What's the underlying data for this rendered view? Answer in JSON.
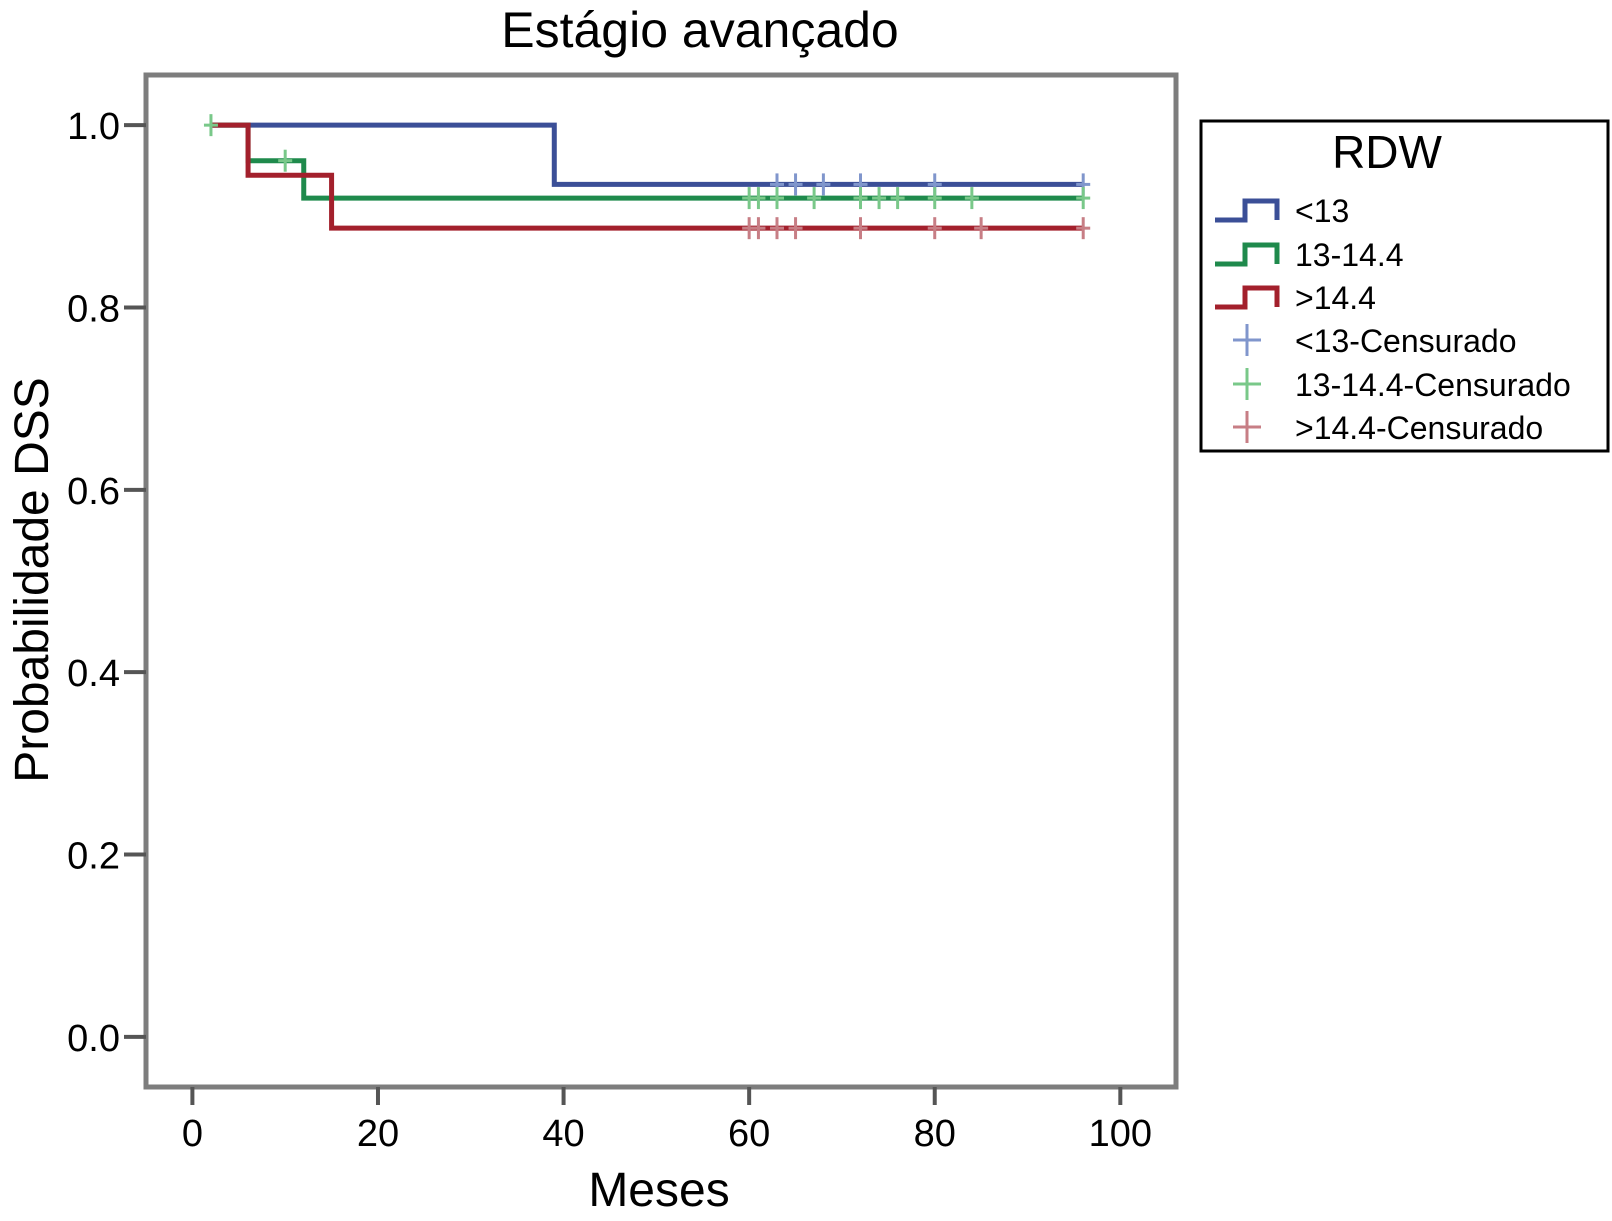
{
  "chart_data": {
    "type": "line",
    "title": "Estágio avançado",
    "xlabel": "Meses",
    "ylabel": "Probabilidade DSS",
    "xlim": [
      -5,
      106
    ],
    "ylim": [
      -0.055,
      1.055
    ],
    "xticks": [
      0,
      20,
      40,
      60,
      80,
      100
    ],
    "yticks": [
      0.0,
      0.2,
      0.4,
      0.6,
      0.8,
      1.0
    ],
    "xtick_labels": [
      "0",
      "20",
      "40",
      "60",
      "80",
      "100"
    ],
    "ytick_labels": [
      "0.0",
      "0.2",
      "0.4",
      "0.6",
      "0.8",
      "1.0"
    ],
    "grid": false,
    "legend": {
      "title": "RDW",
      "placement": "right-top",
      "entries": [
        "<13",
        "13-14.4",
        ">14.4",
        "<13-Censurado",
        "13-14.4-Censurado",
        ">14.4-Censurado"
      ]
    },
    "series": [
      {
        "name": "<13",
        "color": "#3b4f97",
        "censor_color": "#8096cc",
        "step_x": [
          2,
          39,
          96
        ],
        "step_y": [
          1.0,
          0.935,
          0.935
        ],
        "censored": [
          {
            "x": 63,
            "y": 0.935
          },
          {
            "x": 65,
            "y": 0.935
          },
          {
            "x": 68,
            "y": 0.935
          },
          {
            "x": 72,
            "y": 0.935
          },
          {
            "x": 80,
            "y": 0.935
          },
          {
            "x": 96,
            "y": 0.935
          }
        ]
      },
      {
        "name": "13-14.4",
        "color": "#1f8a4c",
        "censor_color": "#79c889",
        "step_x": [
          2,
          6,
          12,
          96
        ],
        "step_y": [
          1.0,
          0.961,
          0.92,
          0.92
        ],
        "censored": [
          {
            "x": 2,
            "y": 1.0
          },
          {
            "x": 10,
            "y": 0.961
          },
          {
            "x": 60,
            "y": 0.92
          },
          {
            "x": 61,
            "y": 0.92
          },
          {
            "x": 63,
            "y": 0.92
          },
          {
            "x": 67,
            "y": 0.92
          },
          {
            "x": 72,
            "y": 0.92
          },
          {
            "x": 74,
            "y": 0.92
          },
          {
            "x": 76,
            "y": 0.92
          },
          {
            "x": 80,
            "y": 0.92
          },
          {
            "x": 84,
            "y": 0.92
          },
          {
            "x": 96,
            "y": 0.92
          }
        ]
      },
      {
        "name": ">14.4",
        "color": "#a3202c",
        "censor_color": "#c77e85",
        "step_x": [
          2,
          6,
          14,
          15,
          96
        ],
        "step_y": [
          1.0,
          0.945,
          0.945,
          0.887,
          0.887
        ],
        "censored": [
          {
            "x": 60,
            "y": 0.887
          },
          {
            "x": 61,
            "y": 0.887
          },
          {
            "x": 63,
            "y": 0.887
          },
          {
            "x": 65,
            "y": 0.887
          },
          {
            "x": 72,
            "y": 0.887
          },
          {
            "x": 80,
            "y": 0.887
          },
          {
            "x": 85,
            "y": 0.887
          },
          {
            "x": 96,
            "y": 0.887
          }
        ]
      }
    ]
  }
}
